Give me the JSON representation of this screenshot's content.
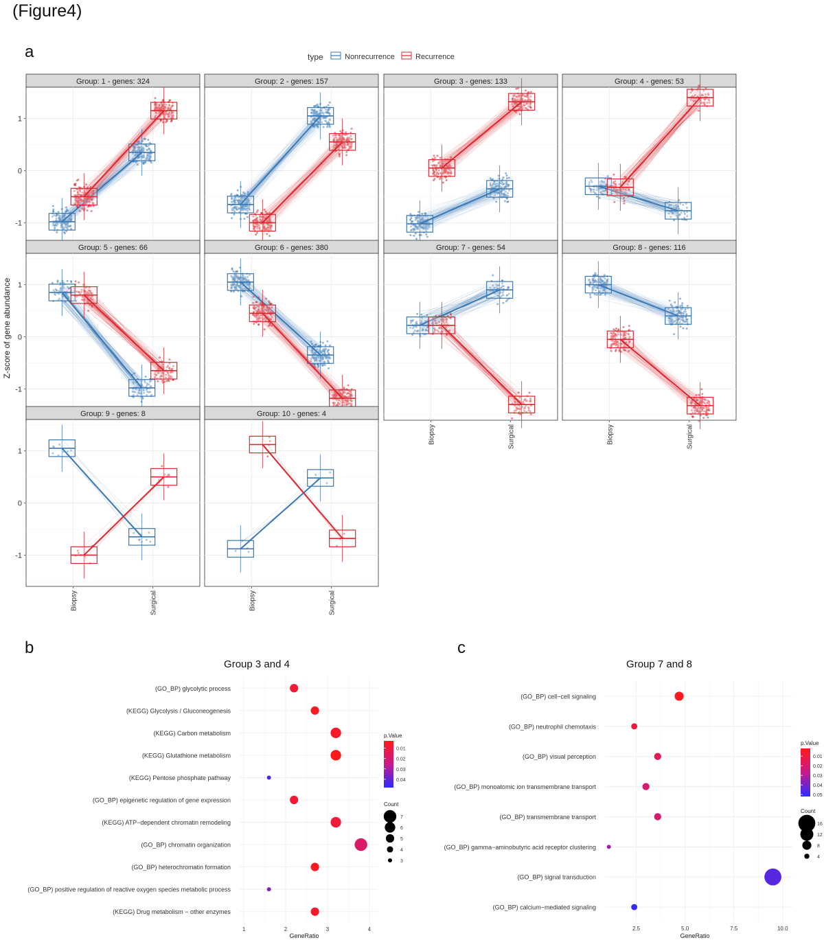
{
  "figure_title": "(Figure4)",
  "panels": {
    "a": "a",
    "b": "b",
    "c": "c"
  },
  "chart_data": [
    {
      "type": "box-line",
      "panel": "a",
      "legend": {
        "title": "type",
        "entries": [
          "Nonrecurrence",
          "Recurrence"
        ],
        "placement": "top"
      },
      "ylabel": "Z-score of gene abundance",
      "x_categories": [
        "Biopsy",
        "Surgical"
      ],
      "y_ticks": [
        -1,
        0,
        1
      ],
      "ylim": [
        -1.6,
        1.6
      ],
      "colors": {
        "Nonrecurrence": "#3a78b4",
        "Recurrence": "#d9282f",
        "strip": "#d9d9d9",
        "grid": "#ebebeb"
      },
      "facets": [
        {
          "title": "Group:  1 - genes: 324",
          "genes": 324,
          "nr": [
            -0.98,
            0.35
          ],
          "re": [
            -0.5,
            1.15
          ]
        },
        {
          "title": "Group:  2 - genes: 157",
          "genes": 157,
          "nr": [
            -0.65,
            1.05
          ],
          "re": [
            -1.0,
            0.55
          ]
        },
        {
          "title": "Group:  3 - genes: 133",
          "genes": 133,
          "nr": [
            -1.02,
            -0.35
          ],
          "re": [
            0.05,
            1.32
          ]
        },
        {
          "title": "Group:  4 - genes: 53",
          "genes": 53,
          "nr": [
            -0.3,
            -0.77
          ],
          "re": [
            -0.32,
            1.4
          ]
        },
        {
          "title": "Group:  5 - genes: 66",
          "genes": 66,
          "nr": [
            0.85,
            -0.98
          ],
          "re": [
            0.8,
            -0.65
          ]
        },
        {
          "title": "Group:  6 - genes: 380",
          "genes": 380,
          "nr": [
            1.05,
            -0.35
          ],
          "re": [
            0.45,
            -1.18
          ]
        },
        {
          "title": "Group:  7 - genes: 54",
          "genes": 54,
          "nr": [
            0.22,
            0.9
          ],
          "re": [
            0.22,
            -1.3
          ]
        },
        {
          "title": "Group:  8 - genes: 116",
          "genes": 116,
          "nr": [
            1.0,
            0.4
          ],
          "re": [
            -0.05,
            -1.32
          ]
        },
        {
          "title": "Group:  9 - genes: 8",
          "genes": 8,
          "nr": [
            1.05,
            -0.65
          ],
          "re": [
            -1.0,
            0.5
          ]
        },
        {
          "title": "Group:  10 - genes: 4",
          "genes": 4,
          "nr": [
            -0.88,
            0.48
          ],
          "re": [
            1.12,
            -0.68
          ]
        }
      ]
    },
    {
      "type": "scatter",
      "panel": "b",
      "title": "Group 3 and 4",
      "xlabel": "GeneRatio",
      "x_ticks": [
        1,
        2,
        3,
        4
      ],
      "xlim": [
        0.9,
        4.2
      ],
      "categories": [
        "(GO_BP) glycolytic process",
        "(KEGG) Glycolysis / Gluconeogenesis",
        "(KEGG) Carbon metabolism",
        "(KEGG) Glutathione metabolism",
        "(KEGG) Pentose phosphate pathway",
        "(GO_BP) epigenetic regulation of gene expression",
        "(KEGG) ATP−dependent chromatin remodeling",
        "(GO_BP) chromatin organization",
        "(GO_BP) heterochromatin formation",
        "(GO_BP) positive regulation of reactive oxygen species metabolic process",
        "(KEGG) Drug metabolism − other enzymes"
      ],
      "gene_ratio": [
        2.2,
        2.7,
        3.2,
        3.2,
        1.6,
        2.2,
        3.2,
        3.8,
        2.7,
        1.6,
        2.7
      ],
      "count": [
        5,
        5,
        6,
        6,
        3,
        5,
        6,
        7,
        5,
        3,
        5
      ],
      "p_value": [
        0.008,
        0.005,
        0.006,
        0.003,
        0.045,
        0.008,
        0.009,
        0.018,
        0.004,
        0.035,
        0.006
      ],
      "color_legend": {
        "title": "p.Value",
        "ticks": [
          "0.01",
          "0.02",
          "0.03",
          "0.04"
        ],
        "low_color": "#ff1a1a",
        "high_color": "#2b2bff",
        "range": [
          0.003,
          0.048
        ]
      },
      "size_legend": {
        "title": "Count",
        "values": [
          7,
          6,
          5,
          4,
          3
        ]
      }
    },
    {
      "type": "scatter",
      "panel": "c",
      "title": "Group 7 and 8",
      "xlabel": "GeneRatio",
      "x_ticks": [
        "2.5",
        "5.0",
        "7.5",
        "10.0"
      ],
      "xlim": [
        0.9,
        10.5
      ],
      "categories": [
        "(GO_BP) cell−cell signaling",
        "(GO_BP) neutrophil chemotaxis",
        "(GO_BP) visual perception",
        "(GO_BP) monoatomic ion transmembrane transport",
        "(GO_BP) transmembrane transport",
        "(GO_BP) gamma−aminobutyric acid receptor clustering",
        "(GO_BP) signal transduction",
        "(GO_BP) calcium−mediated signaling"
      ],
      "gene_ratio": [
        4.7,
        2.4,
        3.6,
        3.0,
        3.6,
        1.1,
        9.5,
        2.4
      ],
      "count": [
        8,
        5,
        6,
        6,
        6,
        3,
        16,
        5
      ],
      "p_value": [
        0.003,
        0.01,
        0.015,
        0.02,
        0.02,
        0.033,
        0.045,
        0.05
      ],
      "color_legend": {
        "title": "p.Value",
        "ticks": [
          "0.01",
          "0.02",
          "0.03",
          "0.04",
          "0.05"
        ],
        "low_color": "#ff1a1a",
        "high_color": "#2b2bff",
        "range": [
          0.002,
          0.052
        ]
      },
      "size_legend": {
        "title": "Count",
        "values": [
          16,
          12,
          8,
          4
        ]
      }
    }
  ]
}
